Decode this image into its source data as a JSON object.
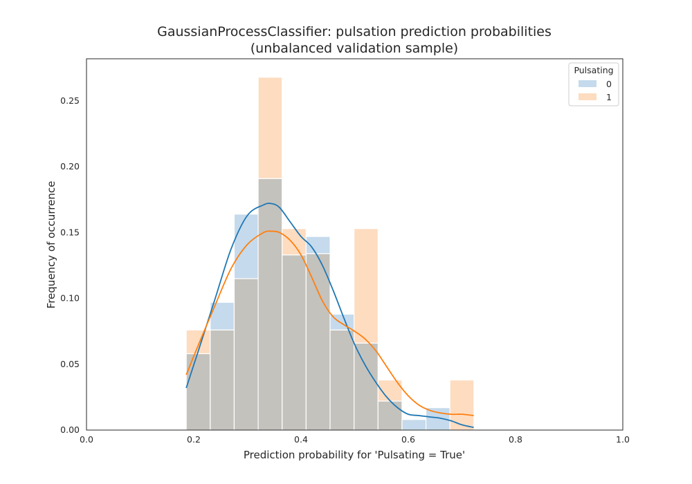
{
  "chart_data": {
    "type": "histogram",
    "title_line1": "GaussianProcessClassifier: pulsation prediction probabilities",
    "title_line2": "(unbalanced validation sample)",
    "xlabel": "Prediction probability for 'Pulsating = True'",
    "ylabel": "Frequency of occurrence",
    "xlim": [
      0.0,
      1.0
    ],
    "ylim": [
      0.0,
      0.282
    ],
    "x_ticks": [
      0.0,
      0.2,
      0.4,
      0.6,
      0.8,
      1.0
    ],
    "x_tick_labels": [
      "0.0",
      "0.2",
      "0.4",
      "0.6",
      "0.8",
      "1.0"
    ],
    "y_ticks": [
      0.0,
      0.05,
      0.1,
      0.15,
      0.2,
      0.25
    ],
    "y_tick_labels": [
      "0.00",
      "0.05",
      "0.10",
      "0.15",
      "0.20",
      "0.25"
    ],
    "grid": false,
    "legend": {
      "title": "Pulsating",
      "position": "top-right"
    },
    "bin_edges": [
      0.186,
      0.2307,
      0.2754,
      0.3201,
      0.3648,
      0.4095,
      0.4542,
      0.4989,
      0.5436,
      0.5883,
      0.633,
      0.6777,
      0.7224
    ],
    "series": [
      {
        "name": "0",
        "bar_color": "#c5daec",
        "line_color": "#1f77b4",
        "values": [
          0.058,
          0.097,
          0.164,
          0.191,
          0.133,
          0.147,
          0.088,
          0.066,
          0.022,
          0.008,
          0.017,
          0.0
        ],
        "kde_x": [
          0.186,
          0.21,
          0.24,
          0.27,
          0.3,
          0.33,
          0.345,
          0.36,
          0.38,
          0.4,
          0.42,
          0.44,
          0.46,
          0.48,
          0.5,
          0.52,
          0.54,
          0.56,
          0.58,
          0.6,
          0.62,
          0.64,
          0.66,
          0.68,
          0.7,
          0.722
        ],
        "kde_y": [
          0.032,
          0.062,
          0.1,
          0.138,
          0.163,
          0.171,
          0.172,
          0.169,
          0.158,
          0.147,
          0.139,
          0.125,
          0.106,
          0.085,
          0.065,
          0.049,
          0.036,
          0.025,
          0.017,
          0.012,
          0.011,
          0.01,
          0.009,
          0.007,
          0.004,
          0.002
        ]
      },
      {
        "name": "1",
        "bar_color": "#fedcc0",
        "line_color": "#ff7f0e",
        "values": [
          0.076,
          0.076,
          0.115,
          0.268,
          0.153,
          0.134,
          0.076,
          0.153,
          0.038,
          0.0,
          0.0,
          0.038
        ],
        "kde_x": [
          0.186,
          0.21,
          0.24,
          0.27,
          0.3,
          0.33,
          0.345,
          0.36,
          0.38,
          0.4,
          0.42,
          0.44,
          0.46,
          0.48,
          0.5,
          0.52,
          0.54,
          0.56,
          0.58,
          0.6,
          0.62,
          0.64,
          0.66,
          0.68,
          0.7,
          0.722
        ],
        "kde_y": [
          0.042,
          0.066,
          0.095,
          0.123,
          0.141,
          0.15,
          0.151,
          0.15,
          0.144,
          0.133,
          0.116,
          0.098,
          0.086,
          0.08,
          0.075,
          0.069,
          0.06,
          0.048,
          0.036,
          0.026,
          0.019,
          0.015,
          0.013,
          0.012,
          0.012,
          0.011
        ]
      }
    ],
    "overlap_color": "#c4c2bd"
  }
}
